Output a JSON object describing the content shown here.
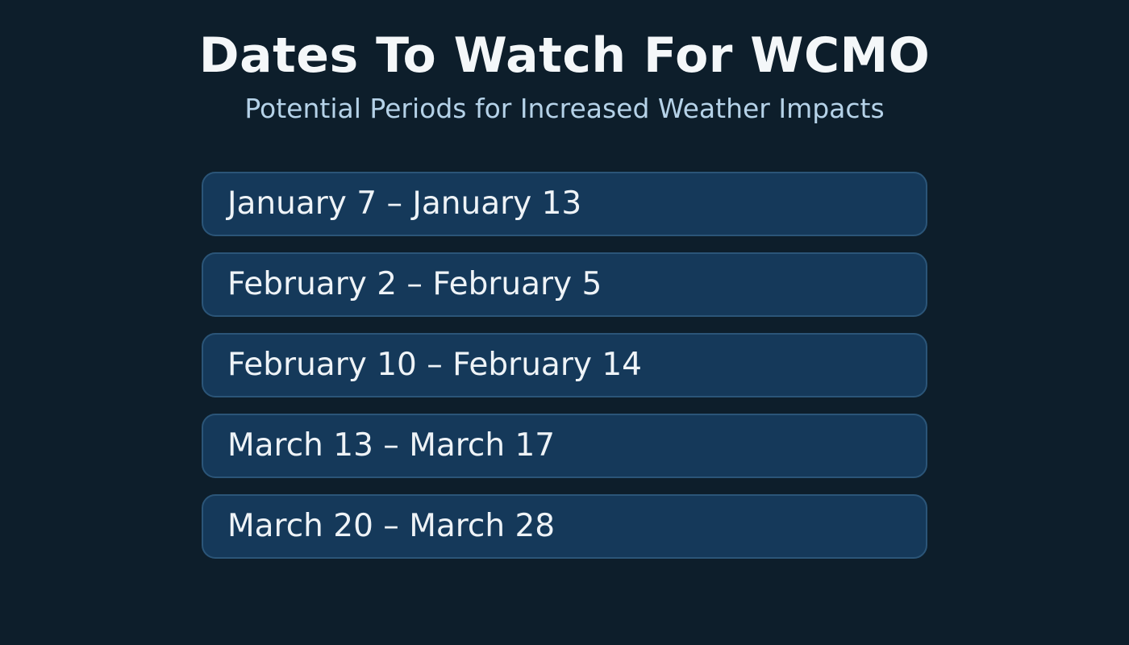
{
  "header": {
    "title": "Dates To Watch For WCMO",
    "subtitle": "Potential Periods for Increased Weather Impacts"
  },
  "date_ranges": [
    "January 7 – January 13",
    "February 2 – February 5",
    "February 10 – February 14",
    "March 13 – March 17",
    "March 20 – March 28"
  ],
  "colors": {
    "background": "#0d1e2b",
    "card_fill": "#15395a",
    "card_border": "#2b5578",
    "title_color": "#f4f7f9",
    "subtitle_color": "#b5d2e8",
    "card_text": "#eef3f7"
  }
}
